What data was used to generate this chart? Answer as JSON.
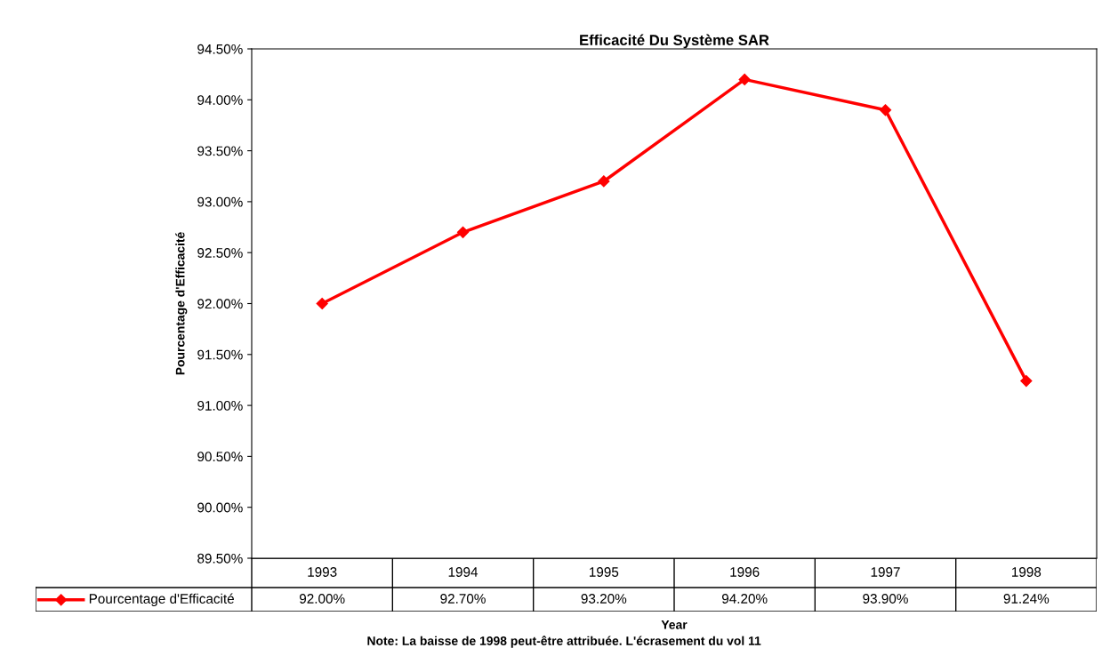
{
  "chart_data": {
    "type": "line",
    "title": "Efficacité Du Système SAR",
    "xlabel": "Year",
    "ylabel": "Pourcentage d'Efficacité",
    "categories": [
      "1993",
      "1994",
      "1995",
      "1996",
      "1997",
      "1998"
    ],
    "series": [
      {
        "name": "Pourcentage d'Efficacité",
        "color": "#ff0000",
        "values": [
          92.0,
          92.7,
          93.2,
          94.2,
          93.9,
          91.24
        ],
        "value_labels": [
          "92.00%",
          "92.70%",
          "93.20%",
          "94.20%",
          "93.90%",
          "91.24%"
        ]
      }
    ],
    "ylim": [
      89.5,
      94.5
    ],
    "yticks": [
      {
        "value": 89.5,
        "label": "89.50%"
      },
      {
        "value": 90.0,
        "label": "90.00%"
      },
      {
        "value": 90.5,
        "label": "90.50%"
      },
      {
        "value": 91.0,
        "label": "91.00%"
      },
      {
        "value": 91.5,
        "label": "91.50%"
      },
      {
        "value": 92.0,
        "label": "92.00%"
      },
      {
        "value": 92.5,
        "label": "92.50%"
      },
      {
        "value": 93.0,
        "label": "93.00%"
      },
      {
        "value": 93.5,
        "label": "93.50%"
      },
      {
        "value": 94.0,
        "label": "94.00%"
      },
      {
        "value": 94.5,
        "label": "94.50%"
      }
    ],
    "marker": "diamond",
    "line_style": "solid",
    "grid": false,
    "legend": "bottom",
    "annotations": [
      "Note: La baisse de 1998 peut-être attribuée. L'écrasement du vol 11"
    ]
  }
}
